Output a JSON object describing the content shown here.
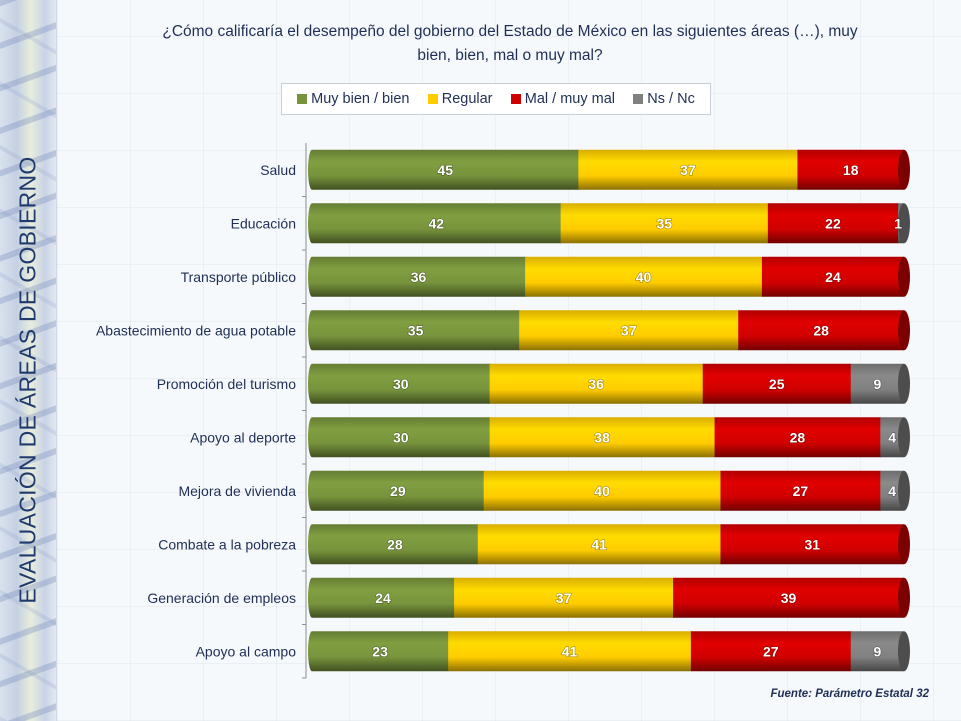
{
  "side_title": "EVALUACIÓN DE ÁREAS DE GOBIERNO",
  "question": "¿Cómo calificaría el desempeño del gobierno del Estado de México en las siguientes áreas (…), muy bien, bien, mal o muy mal?",
  "source": "Fuente: Parámetro Estatal 32",
  "chart_data": {
    "type": "bar",
    "orientation": "horizontal",
    "stacked": true,
    "title": "¿Cómo calificaría el desempeño del gobierno del Estado de México en las siguientes áreas (…), muy bien, bien, mal o muy mal?",
    "xlabel": "",
    "ylabel": "",
    "xlim": [
      0,
      100
    ],
    "grid": false,
    "legend_position": "top",
    "categories": [
      "Salud",
      "Educación",
      "Transporte público",
      "Abastecimiento de agua potable",
      "Promoción del turismo",
      "Apoyo al deporte",
      "Mejora de vivienda",
      "Combate a la pobreza",
      "Generación de empleos",
      "Apoyo al campo"
    ],
    "series": [
      {
        "name": "Muy bien / bien",
        "color": "#77933c",
        "values": [
          45,
          42,
          36,
          35,
          30,
          30,
          29,
          28,
          24,
          23
        ]
      },
      {
        "name": "Regular",
        "color": "#ffcc00",
        "values": [
          37,
          35,
          40,
          37,
          36,
          38,
          40,
          41,
          37,
          41
        ]
      },
      {
        "name": "Mal / muy mal",
        "color": "#d00000",
        "values": [
          18,
          22,
          24,
          28,
          25,
          28,
          27,
          31,
          39,
          27
        ]
      },
      {
        "name": "Ns / Nc",
        "color": "#808080",
        "values": [
          0,
          1,
          0,
          0,
          9,
          4,
          4,
          0,
          0,
          9
        ]
      }
    ]
  }
}
